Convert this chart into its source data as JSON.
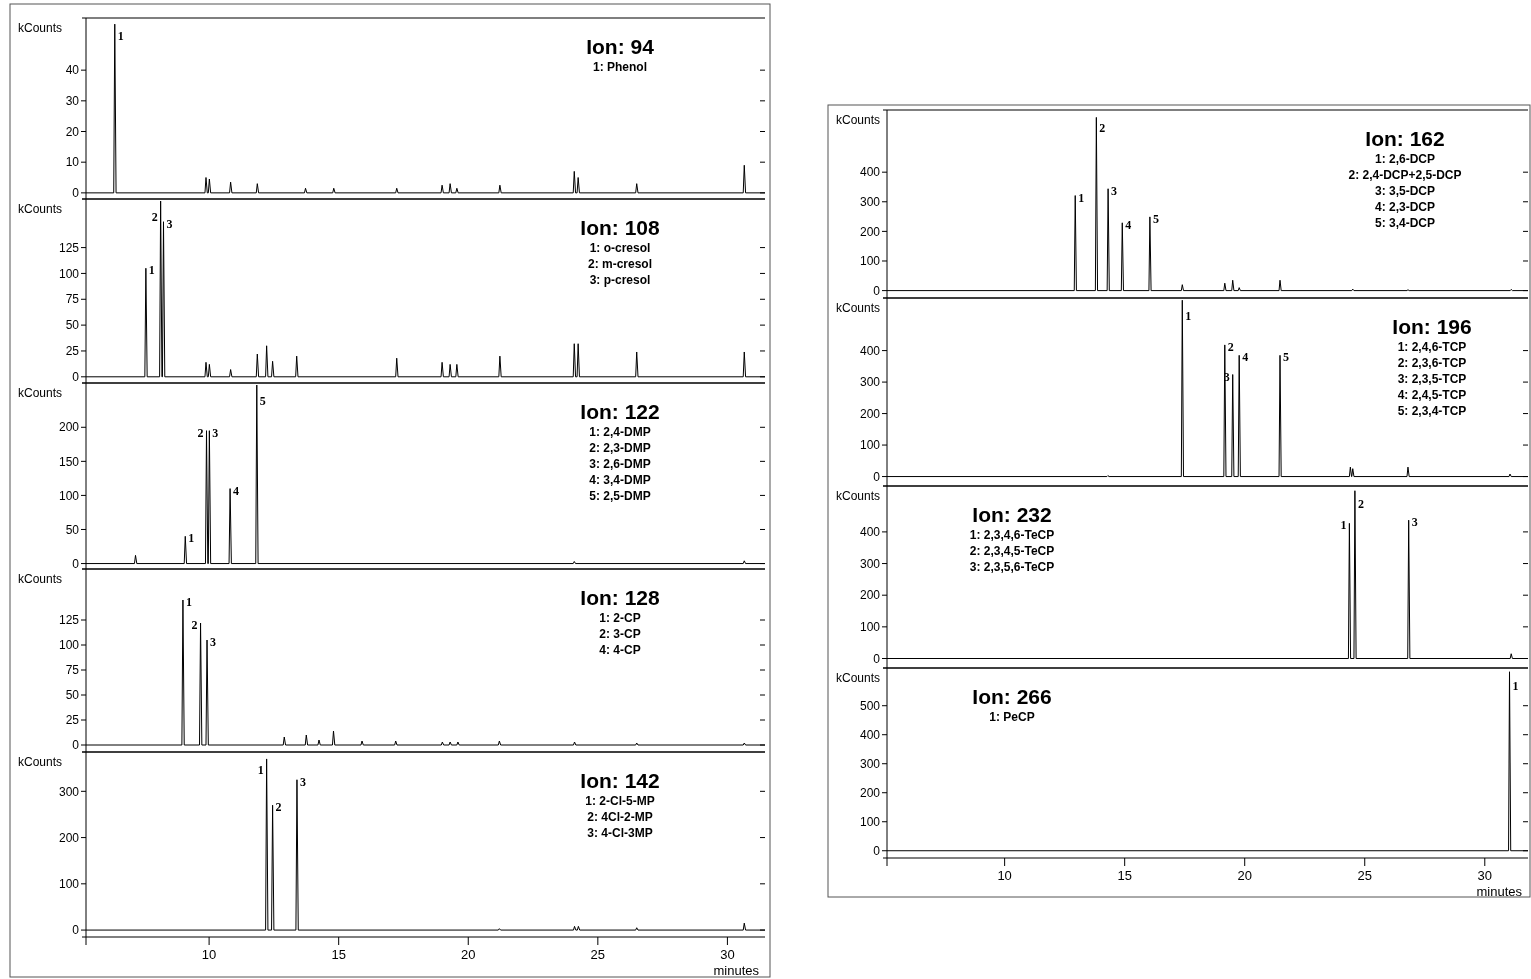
{
  "chart_data": [
    {
      "type": "line",
      "title": "Ion: 94",
      "ylabel": "kCounts",
      "xlim": [
        5.25,
        31.45
      ],
      "ylim": [
        -2,
        57
      ],
      "xticks": [
        10,
        15,
        20,
        25,
        30
      ],
      "yticks": [
        0,
        10,
        20,
        30,
        40
      ],
      "tick_labels": "y",
      "x": [
        5.25,
        6.32,
        6.36,
        6.41,
        9.84,
        9.88,
        9.93,
        9.97,
        10.01,
        10.06,
        10.79,
        10.83,
        10.88,
        11.82,
        11.86,
        11.91,
        13.68,
        13.72,
        13.77,
        14.77,
        14.81,
        14.86,
        17.2,
        17.24,
        17.29,
        18.95,
        18.99,
        19.04,
        19.26,
        19.3,
        19.35,
        19.52,
        19.56,
        19.61,
        21.18,
        21.22,
        21.27,
        24.05,
        24.09,
        24.14,
        24.2,
        24.24,
        24.29,
        26.46,
        26.5,
        26.55,
        30.61,
        30.65,
        30.7,
        31.45
      ],
      "series": [
        {
          "color": "#000000",
          "values": [
            0,
            0,
            55,
            0,
            0,
            5,
            0,
            0,
            4.5,
            0,
            0,
            3.5,
            0,
            0,
            3,
            0,
            0,
            1.5,
            0,
            0,
            1.5,
            0,
            0,
            1.5,
            0,
            0,
            2.5,
            0,
            0,
            3,
            0,
            0,
            1.5,
            0,
            0,
            2.5,
            0,
            0,
            7,
            0,
            0,
            5,
            0,
            0,
            3,
            0,
            0,
            9,
            0,
            0
          ]
        }
      ],
      "annotations": [
        "1: Phenol",
        {
          "text": "1",
          "x": 6.36,
          "y": 55
        }
      ]
    },
    {
      "type": "line",
      "title": "Ion: 108",
      "ylabel": "kCounts",
      "xlim": [
        5.25,
        31.45
      ],
      "ylim": [
        -6,
        172
      ],
      "xticks": [
        10,
        15,
        20,
        25,
        30
      ],
      "yticks": [
        0,
        25,
        50,
        75,
        100,
        125
      ],
      "tick_labels": "y",
      "x": [
        5.25,
        7.52,
        7.56,
        7.61,
        8.09,
        8.13,
        8.18,
        8.2,
        8.24,
        8.29,
        9.84,
        9.88,
        9.93,
        9.97,
        10.01,
        10.06,
        10.79,
        10.83,
        10.88,
        11.82,
        11.86,
        11.91,
        12.18,
        12.22,
        12.27,
        12.41,
        12.45,
        12.5,
        13.34,
        13.38,
        13.43,
        17.2,
        17.24,
        17.29,
        18.95,
        18.99,
        19.04,
        19.26,
        19.3,
        19.35,
        19.52,
        19.56,
        19.61,
        21.18,
        21.22,
        21.27,
        24.05,
        24.09,
        24.14,
        24.2,
        24.24,
        24.29,
        26.46,
        26.5,
        26.55,
        30.61,
        30.65,
        30.7,
        31.45
      ],
      "series": [
        {
          "color": "#000000",
          "values": [
            0,
            0,
            105,
            0,
            0,
            170,
            0,
            0,
            150,
            0,
            0,
            14,
            0,
            0,
            12,
            0,
            0,
            7,
            0,
            0,
            22,
            0,
            0,
            30,
            0,
            0,
            15,
            0,
            0,
            20,
            0,
            0,
            18,
            0,
            0,
            14,
            0,
            0,
            12,
            0,
            0,
            12,
            0,
            0,
            20,
            0,
            0,
            32,
            0,
            0,
            32,
            0,
            0,
            24,
            0,
            0,
            24,
            0,
            0
          ]
        }
      ],
      "annotations": [
        "1: o-cresol",
        "2: m-cresol",
        "3: p-cresol",
        {
          "text": "1",
          "x": 7.56,
          "y": 105
        },
        {
          "text": "2",
          "x": 8.13,
          "y": 170
        },
        {
          "text": "3",
          "x": 8.24,
          "y": 150
        }
      ]
    },
    {
      "type": "line",
      "title": "Ion: 122",
      "ylabel": "kCounts",
      "xlim": [
        5.25,
        31.45
      ],
      "ylim": [
        -8,
        265
      ],
      "xticks": [
        10,
        15,
        20,
        25,
        30
      ],
      "yticks": [
        0,
        50,
        100,
        150,
        200
      ],
      "tick_labels": "y",
      "x": [
        5.25,
        7.12,
        7.16,
        7.21,
        9.04,
        9.08,
        9.13,
        9.86,
        9.9,
        9.95,
        9.97,
        10.01,
        10.06,
        10.77,
        10.81,
        10.86,
        11.8,
        11.84,
        11.89,
        24.05,
        24.09,
        24.14,
        30.61,
        30.65,
        30.7,
        31.45
      ],
      "series": [
        {
          "color": "#000000",
          "values": [
            0,
            0,
            12,
            0,
            0,
            40,
            0,
            0,
            195,
            0,
            0,
            195,
            0,
            0,
            110,
            0,
            0,
            262,
            0,
            0,
            3,
            0,
            0,
            4,
            0,
            0
          ]
        }
      ],
      "annotations": [
        "1: 2,4-DMP",
        "2: 2,3-DMP",
        "3: 2,6-DMP",
        "4: 3,4-DMP",
        "5: 2,5-DMP",
        {
          "text": "1",
          "x": 9.08,
          "y": 40
        },
        {
          "text": "2",
          "x": 9.9,
          "y": 195
        },
        {
          "text": "3",
          "x": 10.01,
          "y": 195
        },
        {
          "text": "4",
          "x": 10.81,
          "y": 110
        },
        {
          "text": "5",
          "x": 11.84,
          "y": 262
        }
      ]
    },
    {
      "type": "line",
      "title": "Ion: 128",
      "ylabel": "kCounts",
      "xlim": [
        5.25,
        31.45
      ],
      "ylim": [
        -7,
        176
      ],
      "xticks": [
        10,
        15,
        20,
        25,
        30
      ],
      "yticks": [
        0,
        25,
        50,
        75,
        100,
        125
      ],
      "tick_labels": "y",
      "x": [
        5.25,
        8.95,
        8.99,
        9.04,
        9.63,
        9.67,
        9.72,
        9.88,
        9.92,
        9.97,
        12.86,
        12.9,
        12.95,
        13.71,
        13.75,
        13.8,
        14.2,
        14.24,
        14.29,
        14.76,
        14.8,
        14.85,
        15.86,
        15.9,
        15.95,
        17.16,
        17.2,
        17.25,
        18.96,
        19.0,
        19.05,
        19.26,
        19.3,
        19.35,
        19.56,
        19.6,
        19.65,
        21.16,
        21.2,
        21.25,
        24.06,
        24.1,
        24.15,
        26.46,
        26.5,
        26.55,
        30.61,
        30.65,
        30.7,
        31.45
      ],
      "series": [
        {
          "color": "#000000",
          "values": [
            0,
            0,
            145,
            0,
            0,
            122,
            0,
            0,
            105,
            0,
            0,
            8,
            0,
            0,
            10,
            0,
            0,
            5,
            0,
            0,
            14,
            0,
            0,
            4,
            0,
            0,
            4,
            0,
            0,
            3,
            0,
            0,
            3,
            0,
            0,
            3,
            0,
            0,
            4,
            0,
            0,
            3,
            0,
            0,
            2,
            0,
            0,
            2,
            0,
            0
          ]
        }
      ],
      "annotations": [
        "1: 2-CP",
        "2: 3-CP",
        "4: 4-CP",
        {
          "text": "1",
          "x": 8.99,
          "y": 145
        },
        {
          "text": "2",
          "x": 9.67,
          "y": 122
        },
        {
          "text": "3",
          "x": 9.92,
          "y": 105
        }
      ]
    },
    {
      "type": "line",
      "title": "Ion: 142",
      "ylabel": "kCounts",
      "xlabel": "minutes",
      "xlim": [
        5.25,
        31.45
      ],
      "ylim": [
        -15,
        385
      ],
      "xticks": [
        10,
        15,
        20,
        25,
        30
      ],
      "yticks": [
        0,
        100,
        200,
        300
      ],
      "x": [
        5.25,
        12.18,
        12.22,
        12.27,
        12.41,
        12.45,
        12.5,
        13.35,
        13.39,
        13.44,
        21.16,
        21.2,
        21.25,
        24.06,
        24.1,
        24.15,
        24.21,
        24.25,
        24.3,
        26.46,
        26.5,
        26.55,
        30.61,
        30.65,
        30.7,
        31.45
      ],
      "series": [
        {
          "color": "#000000",
          "values": [
            0,
            0,
            370,
            0,
            0,
            270,
            0,
            0,
            325,
            0,
            0,
            3,
            0,
            0,
            8,
            0,
            0,
            8,
            0,
            0,
            5,
            0,
            0,
            15,
            0,
            0
          ]
        }
      ],
      "annotations": [
        "1: 2-Cl-5-MP",
        "2: 4Cl-2-MP",
        "3: 4-Cl-3MP",
        {
          "text": "1",
          "x": 12.22,
          "y": 370
        },
        {
          "text": "2",
          "x": 12.45,
          "y": 270
        },
        {
          "text": "3",
          "x": 13.39,
          "y": 325
        }
      ]
    },
    {
      "type": "line",
      "title": "Ion: 162",
      "ylabel": "kCounts",
      "xlim": [
        5.1,
        31.8
      ],
      "ylim": [
        -25,
        610
      ],
      "xticks": [
        10,
        15,
        20,
        25,
        30
      ],
      "yticks": [
        0,
        100,
        200,
        300,
        400
      ],
      "tick_labels": "y",
      "x": [
        5.1,
        12.9,
        12.94,
        12.99,
        13.78,
        13.82,
        13.87,
        14.27,
        14.31,
        14.36,
        14.86,
        14.9,
        14.95,
        16.01,
        16.05,
        16.1,
        17.36,
        17.4,
        17.45,
        19.13,
        19.17,
        19.22,
        19.46,
        19.5,
        19.55,
        19.73,
        19.77,
        19.82,
        21.43,
        21.47,
        21.52,
        24.46,
        24.5,
        24.55,
        26.76,
        26.8,
        26.85,
        31.06,
        31.1,
        31.15,
        31.8
      ],
      "series": [
        {
          "color": "#000000",
          "values": [
            0,
            0,
            321,
            0,
            0,
            585,
            0,
            0,
            344,
            0,
            0,
            229,
            0,
            0,
            249,
            0,
            0,
            20,
            0,
            0,
            25,
            0,
            0,
            35,
            0,
            0,
            10,
            0,
            0,
            35,
            0,
            0,
            5,
            0,
            0,
            3,
            0,
            0,
            4,
            0,
            0
          ]
        }
      ],
      "annotations": [
        "1: 2,6-DCP",
        "2: 2,4-DCP+2,5-DCP",
        "3: 3,5-DCP",
        "4: 2,3-DCP",
        "5: 3,4-DCP",
        {
          "text": "1",
          "x": 12.94,
          "y": 321
        },
        {
          "text": "2",
          "x": 13.82,
          "y": 585
        },
        {
          "text": "3",
          "x": 14.31,
          "y": 344
        },
        {
          "text": "4",
          "x": 14.9,
          "y": 229
        },
        {
          "text": "5",
          "x": 16.05,
          "y": 249
        }
      ]
    },
    {
      "type": "line",
      "title": "Ion: 196",
      "ylabel": "kCounts",
      "xlim": [
        5.1,
        31.8
      ],
      "ylim": [
        -30,
        567
      ],
      "xticks": [
        10,
        15,
        20,
        25,
        30
      ],
      "yticks": [
        0,
        100,
        200,
        300,
        400
      ],
      "tick_labels": "y",
      "x": [
        5.1,
        14.26,
        14.3,
        14.35,
        17.36,
        17.4,
        17.45,
        19.13,
        19.17,
        19.22,
        19.46,
        19.5,
        19.55,
        19.73,
        19.77,
        19.82,
        21.43,
        21.47,
        21.52,
        24.36,
        24.4,
        24.45,
        24.46,
        24.5,
        24.55,
        26.76,
        26.8,
        26.85,
        31.01,
        31.05,
        31.1,
        31.8
      ],
      "series": [
        {
          "color": "#000000",
          "values": [
            0,
            0,
            3,
            0,
            0,
            560,
            0,
            0,
            418,
            0,
            0,
            324,
            0,
            0,
            385,
            0,
            0,
            385,
            0,
            0,
            30,
            0,
            0,
            25,
            0,
            0,
            30,
            0,
            0,
            8,
            0,
            0
          ]
        }
      ],
      "annotations": [
        "1: 2,4,6-TCP",
        "2: 2,3,6-TCP",
        "3: 2,3,5-TCP",
        "4: 2,4,5-TCP",
        "5: 2,3,4-TCP",
        {
          "text": "1",
          "x": 17.4,
          "y": 560
        },
        {
          "text": "2",
          "x": 19.17,
          "y": 418
        },
        {
          "text": "3",
          "x": 19.5,
          "y": 324
        },
        {
          "text": "4",
          "x": 19.77,
          "y": 385
        },
        {
          "text": "5",
          "x": 21.47,
          "y": 385
        }
      ]
    },
    {
      "type": "line",
      "title": "Ion: 232",
      "ylabel": "kCounts",
      "xlim": [
        5.1,
        31.8
      ],
      "ylim": [
        -30,
        545
      ],
      "xticks": [
        10,
        15,
        20,
        25,
        30
      ],
      "yticks": [
        0,
        100,
        200,
        300,
        400
      ],
      "tick_labels": "y",
      "x": [
        5.1,
        24.32,
        24.36,
        24.41,
        24.55,
        24.59,
        24.64,
        26.79,
        26.83,
        26.88,
        31.06,
        31.1,
        31.15,
        31.8
      ],
      "series": [
        {
          "color": "#000000",
          "values": [
            0,
            0,
            427,
            0,
            0,
            530,
            0,
            0,
            437,
            0,
            0,
            15,
            0,
            0
          ]
        }
      ],
      "annotations": [
        "1: 2,3,4,6-TeCP",
        "2: 2,3,4,5-TeCP",
        "3: 2,3,5,6-TeCP",
        {
          "text": "1",
          "x": 24.36,
          "y": 427
        },
        {
          "text": "2",
          "x": 24.59,
          "y": 530
        },
        {
          "text": "3",
          "x": 26.83,
          "y": 437
        }
      ]
    },
    {
      "type": "line",
      "title": "Ion: 266",
      "ylabel": "kCounts",
      "xlabel": "minutes",
      "xlim": [
        5.1,
        31.8
      ],
      "ylim": [
        -25,
        630
      ],
      "xticks": [
        10,
        15,
        20,
        25,
        30
      ],
      "yticks": [
        0,
        100,
        200,
        300,
        400,
        500
      ],
      "x": [
        5.1,
        30.99,
        31.03,
        31.08,
        31.8
      ],
      "series": [
        {
          "color": "#000000",
          "values": [
            0,
            0,
            617,
            0,
            0
          ]
        }
      ],
      "annotations": [
        "1: PeCP",
        {
          "text": "1",
          "x": 31.03,
          "y": 617
        }
      ]
    }
  ]
}
